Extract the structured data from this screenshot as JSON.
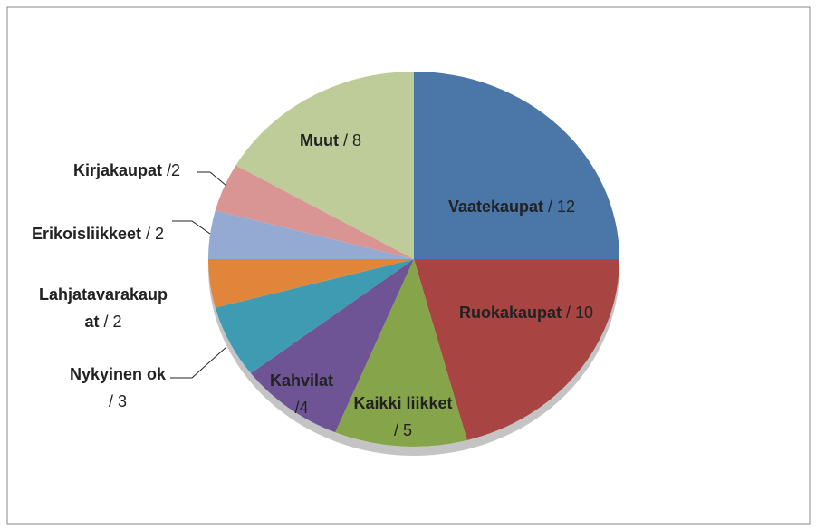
{
  "chart_data": {
    "type": "pie",
    "categories": [
      "Vaatekaupat",
      "Ruokakaupat",
      "Kaikki liikket",
      "Kahvilat",
      "Nykyinen ok",
      "Lahjatavarakaupat",
      "Erikoisliikkeet",
      "Kirjakaupat",
      "Muut"
    ],
    "values": [
      12,
      10,
      5,
      4,
      3,
      2,
      2,
      2,
      8
    ],
    "value_labels": [
      "/ 12",
      "/ 10",
      "/ 5",
      "/4",
      "/ 3",
      "/ 2",
      "/ 2",
      "/2",
      "/ 8"
    ],
    "colors": [
      "#4a76a8",
      "#a84543",
      "#86a44a",
      "#6e5494",
      "#3f9bb2",
      "#e0853a",
      "#94aad2",
      "#d89594",
      "#bdcc98"
    ]
  }
}
